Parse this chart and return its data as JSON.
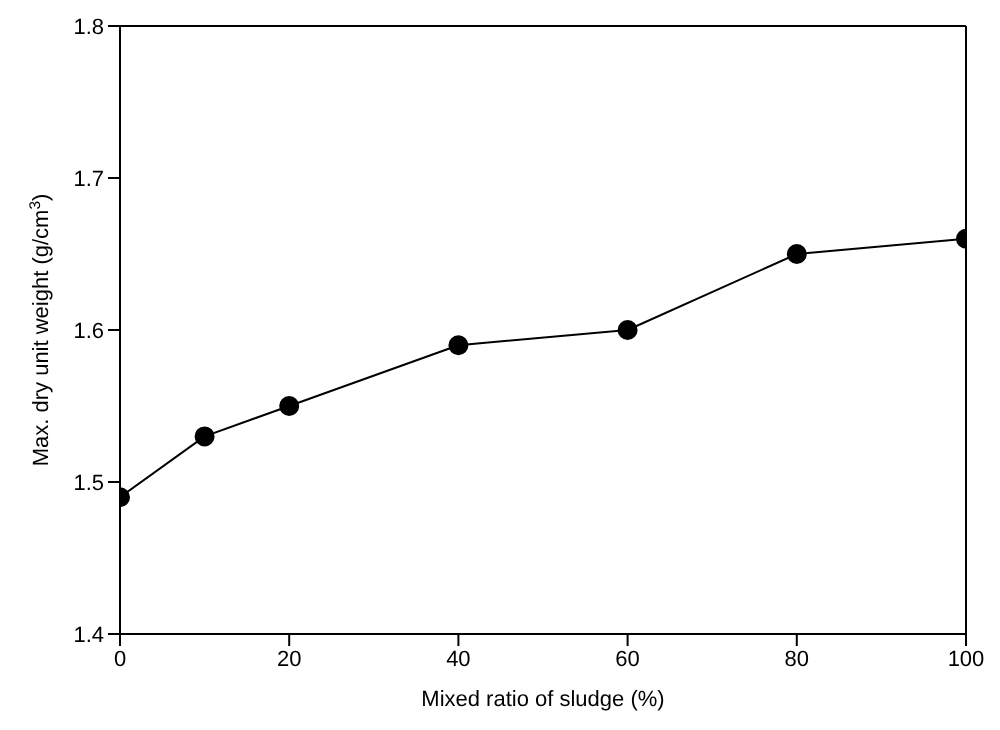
{
  "chart_data": {
    "type": "line",
    "xlabel": "Mixed ratio of sludge (%)",
    "ylabel": "Max. dry unit weight (g/cm$^{3}$)",
    "x": [
      0,
      10,
      20,
      40,
      60,
      80,
      100
    ],
    "series": [
      {
        "color": "#000000",
        "values": [
          1.49,
          1.53,
          1.55,
          1.59,
          1.6,
          1.65,
          1.66
        ]
      }
    ],
    "xlim": [
      0,
      100
    ],
    "xticks": [
      0,
      20,
      40,
      60,
      80,
      100
    ],
    "ylim": [
      1.4,
      1.8
    ],
    "yticks": [
      1.4,
      1.5,
      1.6,
      1.7,
      1.8
    ],
    "grid": false,
    "legend": false,
    "marker": "circle",
    "line_style": "solid"
  }
}
